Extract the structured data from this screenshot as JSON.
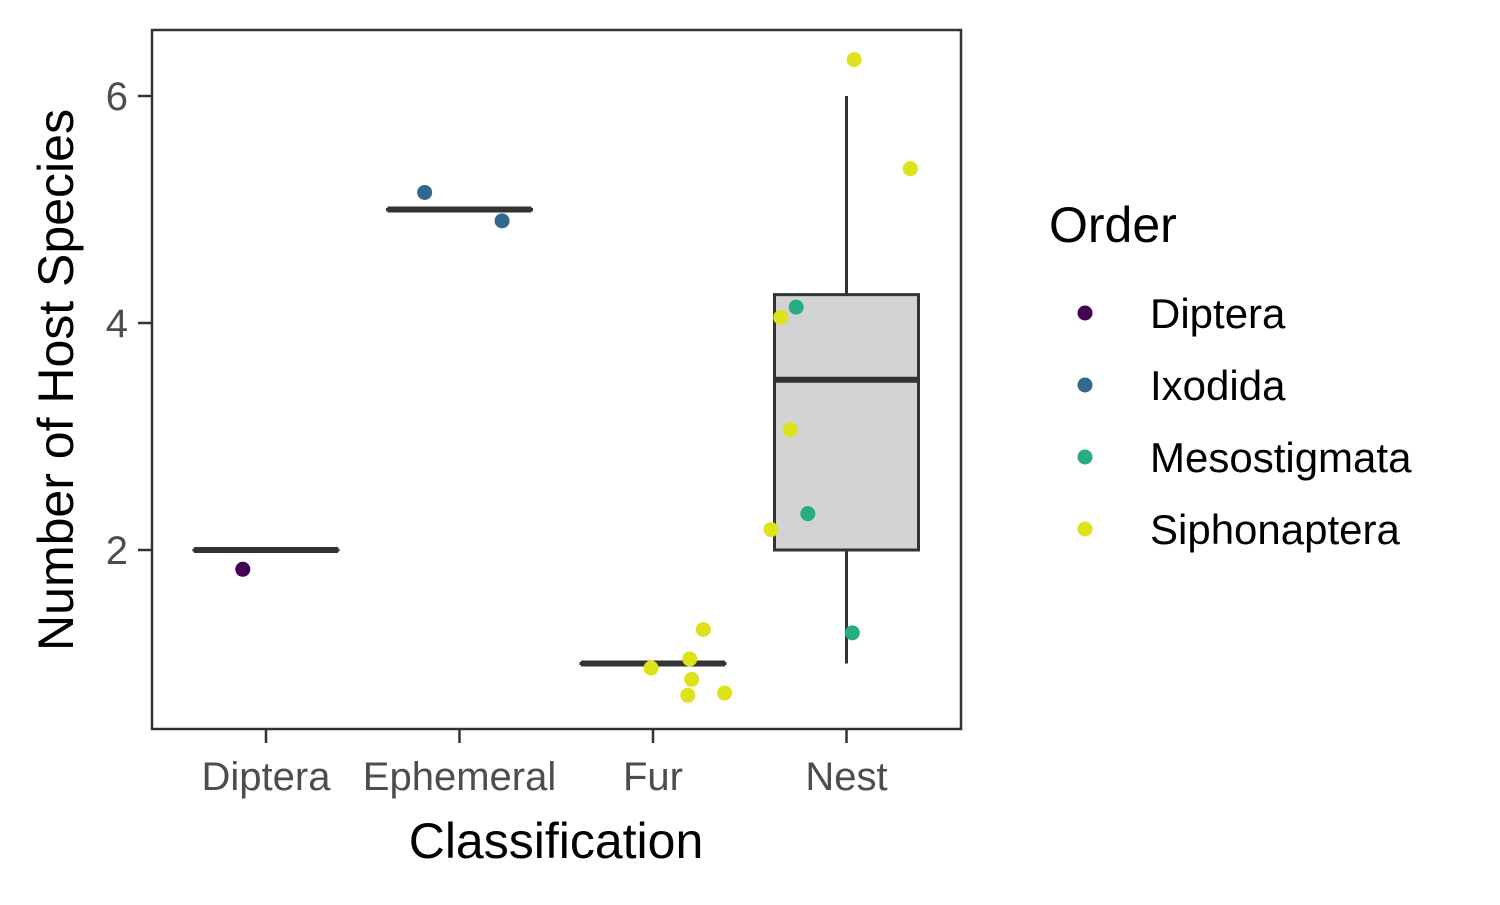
{
  "chart_data": {
    "type": "boxplot",
    "xlabel": "Classification",
    "ylabel": "Number of Host Species",
    "categories": [
      "Diptera",
      "Ephemeral",
      "Fur",
      "Nest"
    ],
    "yticks": [
      2,
      4,
      6
    ],
    "ylim": [
      0.55,
      6.6
    ],
    "boxes": [
      {
        "category": "Diptera",
        "min": 2,
        "q1": 2,
        "median": 2,
        "q3": 2,
        "max": 2
      },
      {
        "category": "Ephemeral",
        "min": 5,
        "q1": 5,
        "median": 5,
        "q3": 5,
        "max": 5
      },
      {
        "category": "Fur",
        "min": 1,
        "q1": 1,
        "median": 1,
        "q3": 1,
        "max": 1
      },
      {
        "category": "Nest",
        "min": 1,
        "q1": 2,
        "median": 3.5,
        "q3": 4.25,
        "max": 6
      }
    ],
    "points": [
      {
        "category": "Diptera",
        "order": "Diptera",
        "jitter": -0.12,
        "y": 1.83
      },
      {
        "category": "Ephemeral",
        "order": "Ixodida",
        "jitter": -0.18,
        "y": 5.15
      },
      {
        "category": "Ephemeral",
        "order": "Ixodida",
        "jitter": 0.22,
        "y": 4.9
      },
      {
        "category": "Fur",
        "order": "Siphonaptera",
        "jitter": 0.26,
        "y": 1.3
      },
      {
        "category": "Fur",
        "order": "Siphonaptera",
        "jitter": 0.19,
        "y": 1.04
      },
      {
        "category": "Fur",
        "order": "Siphonaptera",
        "jitter": -0.01,
        "y": 0.96
      },
      {
        "category": "Fur",
        "order": "Siphonaptera",
        "jitter": 0.2,
        "y": 0.86
      },
      {
        "category": "Fur",
        "order": "Siphonaptera",
        "jitter": 0.37,
        "y": 0.74
      },
      {
        "category": "Fur",
        "order": "Siphonaptera",
        "jitter": 0.18,
        "y": 0.72
      },
      {
        "category": "Nest",
        "order": "Siphonaptera",
        "jitter": 0.04,
        "y": 6.32
      },
      {
        "category": "Nest",
        "order": "Siphonaptera",
        "jitter": 0.33,
        "y": 5.36
      },
      {
        "category": "Nest",
        "order": "Siphonaptera",
        "jitter": -0.34,
        "y": 4.05
      },
      {
        "category": "Nest",
        "order": "Mesostigmata",
        "jitter": -0.26,
        "y": 4.14
      },
      {
        "category": "Nest",
        "order": "Siphonaptera",
        "jitter": -0.29,
        "y": 3.06
      },
      {
        "category": "Nest",
        "order": "Mesostigmata",
        "jitter": -0.2,
        "y": 2.32
      },
      {
        "category": "Nest",
        "order": "Siphonaptera",
        "jitter": -0.39,
        "y": 2.18
      },
      {
        "category": "Nest",
        "order": "Mesostigmata",
        "jitter": 0.03,
        "y": 1.27
      }
    ],
    "legend": {
      "title": "Order",
      "placement": "right",
      "items": [
        {
          "label": "Diptera",
          "color": "#440154"
        },
        {
          "label": "Ixodida",
          "color": "#31688e"
        },
        {
          "label": "Mesostigmata",
          "color": "#26ad81"
        },
        {
          "label": "Siphonaptera",
          "color": "#dde318"
        }
      ]
    },
    "colors": {
      "box_fill": "#d3d3d3",
      "box_line": "#333333",
      "panel_border": "#333333",
      "tick_text": "#4d4d4d",
      "axis_title": "#000000"
    },
    "grid": false
  }
}
